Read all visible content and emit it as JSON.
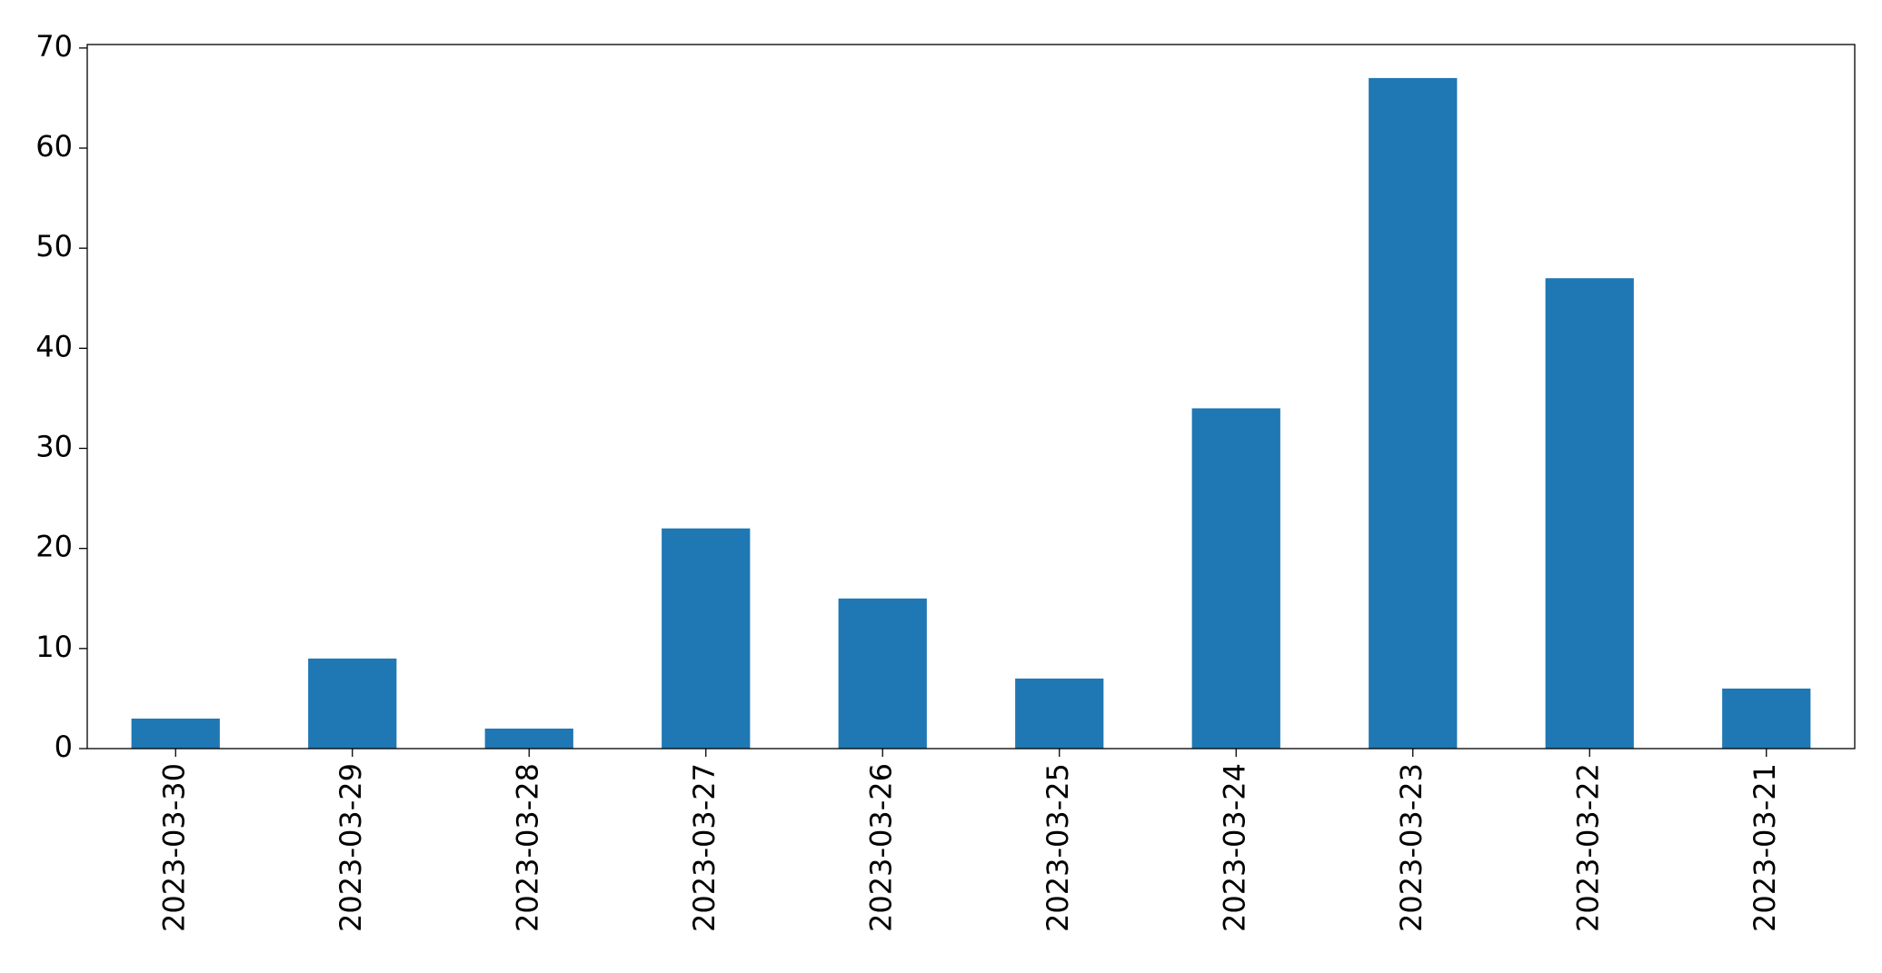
{
  "chart_data": {
    "type": "bar",
    "categories": [
      "2023-03-30",
      "2023-03-29",
      "2023-03-28",
      "2023-03-27",
      "2023-03-26",
      "2023-03-25",
      "2023-03-24",
      "2023-03-23",
      "2023-03-22",
      "2023-03-21"
    ],
    "values": [
      3,
      9,
      2,
      22,
      15,
      7,
      34,
      67,
      47,
      6
    ],
    "color": "#1f77b4",
    "ylim": [
      0,
      70.35
    ],
    "yticks": [
      0,
      10,
      20,
      30,
      40,
      50,
      60,
      70
    ],
    "grid": false
  }
}
